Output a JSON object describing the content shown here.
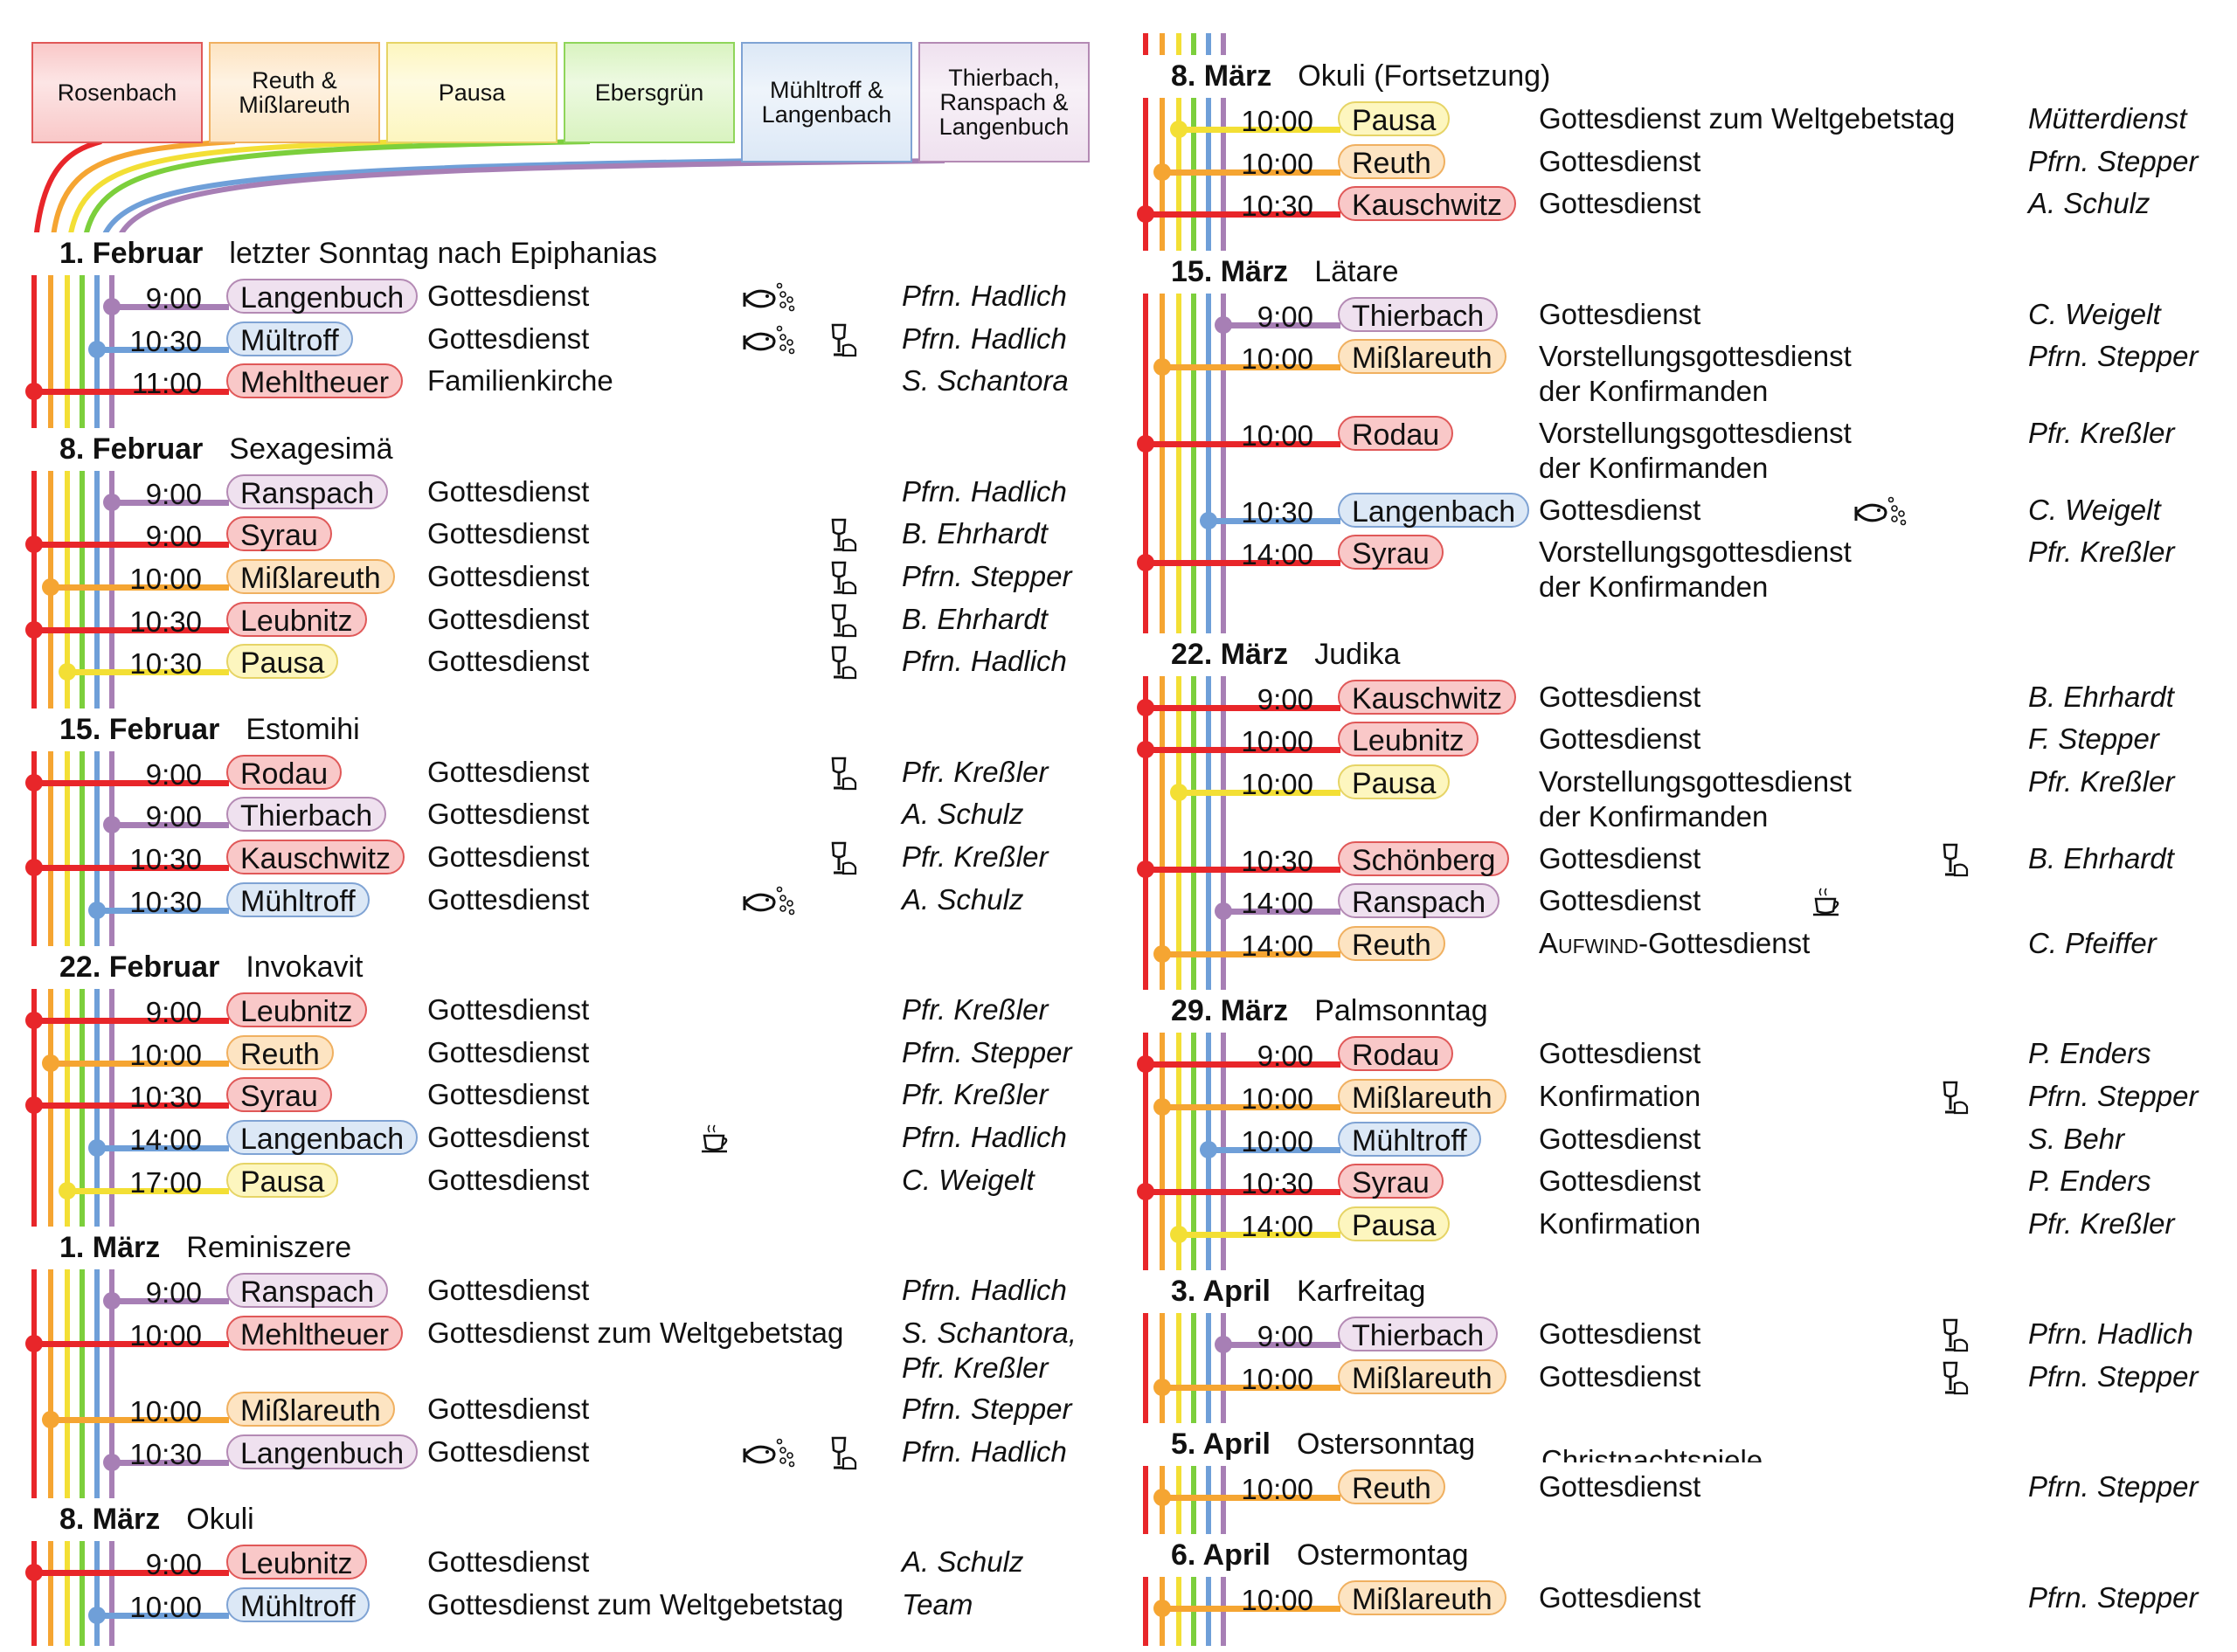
{
  "colors": {
    "rosenbach": {
      "rail": "#e8262a",
      "bg": "#f9c8c8",
      "border": "#e05858"
    },
    "reuth": {
      "rail": "#f5a532",
      "bg": "#fde4c2",
      "border": "#f0b060"
    },
    "pausa": {
      "rail": "#f3df35",
      "bg": "#fdf6bf",
      "border": "#e6d466"
    },
    "ebersgruen": {
      "rail": "#7ccf3c",
      "bg": "#d9f3c0",
      "border": "#8fd55a"
    },
    "muehltroff": {
      "rail": "#6f9fd8",
      "bg": "#dce8f6",
      "border": "#7fa3d4"
    },
    "thierbach": {
      "rail": "#a77fb5",
      "bg": "#efe1ef",
      "border": "#b48ab4"
    }
  },
  "tabs": [
    {
      "label": "Rosenbach",
      "parish": "rosenbach"
    },
    {
      "label": "Reuth &\nMißlareuth",
      "parish": "reuth"
    },
    {
      "label": "Pausa",
      "parish": "pausa"
    },
    {
      "label": "Ebersgrün",
      "parish": "ebersgruen"
    },
    {
      "label": "Mühltroff &\nLangenbach",
      "parish": "muehltroff"
    },
    {
      "label": "Thierbach,\nRanspach &\nLangenbuch",
      "parish": "thierbach"
    }
  ],
  "left": [
    {
      "date": "1. Februar",
      "name": "letzter Sonntag nach Epiphanias",
      "services": [
        {
          "time": "9:00",
          "place": "Langenbuch",
          "parish": "thierbach",
          "desc": "Gottesdienst",
          "icons": [
            "fish-icon"
          ],
          "pastor": "Pfrn. Hadlich"
        },
        {
          "time": "10:30",
          "place": "Mültroff",
          "parish": "muehltroff",
          "desc": "Gottesdienst",
          "icons": [
            "fish-icon",
            "chalice-icon"
          ],
          "pastor": "Pfrn. Hadlich"
        },
        {
          "time": "11:00",
          "place": "Mehltheuer",
          "parish": "rosenbach",
          "desc": "Familienkirche",
          "icons": [],
          "pastor": "S. Schantora"
        }
      ]
    },
    {
      "date": "8. Februar",
      "name": "Sexagesimä",
      "services": [
        {
          "time": "9:00",
          "place": "Ranspach",
          "parish": "thierbach",
          "desc": "Gottesdienst",
          "icons": [],
          "pastor": "Pfrn. Hadlich"
        },
        {
          "time": "9:00",
          "place": "Syrau",
          "parish": "rosenbach",
          "desc": "Gottesdienst",
          "icons": [
            "chalice-icon"
          ],
          "pastor": "B. Ehrhardt"
        },
        {
          "time": "10:00",
          "place": "Mißlareuth",
          "parish": "reuth",
          "desc": "Gottesdienst",
          "icons": [
            "chalice-icon"
          ],
          "pastor": "Pfrn. Stepper"
        },
        {
          "time": "10:30",
          "place": "Leubnitz",
          "parish": "rosenbach",
          "desc": "Gottesdienst",
          "icons": [
            "chalice-icon"
          ],
          "pastor": "B. Ehrhardt"
        },
        {
          "time": "10:30",
          "place": "Pausa",
          "parish": "pausa",
          "desc": "Gottesdienst",
          "icons": [
            "chalice-icon"
          ],
          "pastor": "Pfrn. Hadlich"
        }
      ]
    },
    {
      "date": "15. Februar",
      "name": "Estomihi",
      "services": [
        {
          "time": "9:00",
          "place": "Rodau",
          "parish": "rosenbach",
          "desc": "Gottesdienst",
          "icons": [
            "chalice-icon"
          ],
          "pastor": "Pfr. Kreßler"
        },
        {
          "time": "9:00",
          "place": "Thierbach",
          "parish": "thierbach",
          "desc": "Gottesdienst",
          "icons": [],
          "pastor": "A. Schulz"
        },
        {
          "time": "10:30",
          "place": "Kauschwitz",
          "parish": "rosenbach",
          "desc": "Gottesdienst",
          "icons": [
            "chalice-icon"
          ],
          "pastor": "Pfr. Kreßler"
        },
        {
          "time": "10:30",
          "place": "Mühltroff",
          "parish": "muehltroff",
          "desc": "Gottesdienst",
          "icons": [
            "fish-icon"
          ],
          "pastor": "A. Schulz"
        }
      ]
    },
    {
      "date": "22. Februar",
      "name": "Invokavit",
      "services": [
        {
          "time": "9:00",
          "place": "Leubnitz",
          "parish": "rosenbach",
          "desc": "Gottesdienst",
          "icons": [],
          "pastor": "Pfr. Kreßler"
        },
        {
          "time": "10:00",
          "place": "Reuth",
          "parish": "reuth",
          "desc": "Gottesdienst",
          "icons": [],
          "pastor": "Pfrn. Stepper"
        },
        {
          "time": "10:30",
          "place": "Syrau",
          "parish": "rosenbach",
          "desc": "Gottesdienst",
          "icons": [],
          "pastor": "Pfr. Kreßler"
        },
        {
          "time": "14:00",
          "place": "Langenbach",
          "parish": "muehltroff",
          "desc": "Gottesdienst",
          "icons": [
            "coffee-icon"
          ],
          "pastor": "Pfrn. Hadlich"
        },
        {
          "time": "17:00",
          "place": "Pausa",
          "parish": "pausa",
          "desc": "Gottesdienst",
          "icons": [],
          "pastor": "C. Weigelt"
        }
      ]
    },
    {
      "date": "1. März",
      "name": "Reminiszere",
      "services": [
        {
          "time": "9:00",
          "place": "Ranspach",
          "parish": "thierbach",
          "desc": "Gottesdienst",
          "icons": [],
          "pastor": "Pfrn. Hadlich"
        },
        {
          "time": "10:00",
          "place": "Mehltheuer",
          "parish": "rosenbach",
          "desc": "Gottesdienst zum Weltgebetstag",
          "icons": [],
          "pastor": "S. Schantora,\nPfr. Kreßler",
          "two": true
        },
        {
          "time": "10:00",
          "place": "Mißlareuth",
          "parish": "reuth",
          "desc": "Gottesdienst",
          "icons": [],
          "pastor": "Pfrn. Stepper"
        },
        {
          "time": "10:30",
          "place": "Langenbuch",
          "parish": "thierbach",
          "desc": "Gottesdienst",
          "icons": [
            "fish-icon",
            "chalice-icon"
          ],
          "pastor": "Pfrn. Hadlich"
        }
      ]
    },
    {
      "date": "8. März",
      "name": "Okuli",
      "services": [
        {
          "time": "9:00",
          "place": "Leubnitz",
          "parish": "rosenbach",
          "desc": "Gottesdienst",
          "icons": [],
          "pastor": "A. Schulz"
        },
        {
          "time": "10:00",
          "place": "Mühltroff",
          "parish": "muehltroff",
          "desc": "Gottesdienst zum Weltgebetstag",
          "icons": [],
          "pastor": "Team"
        }
      ]
    }
  ],
  "right": [
    {
      "date": "8. März",
      "name": "Okuli (Fortsetzung)",
      "services": [
        {
          "time": "10:00",
          "place": "Pausa",
          "parish": "pausa",
          "desc": "Gottesdienst zum Weltgebetstag",
          "icons": [],
          "pastor": "Mütterdienst"
        },
        {
          "time": "10:00",
          "place": "Reuth",
          "parish": "reuth",
          "desc": "Gottesdienst",
          "icons": [],
          "pastor": "Pfrn. Stepper"
        },
        {
          "time": "10:30",
          "place": "Kauschwitz",
          "parish": "rosenbach",
          "desc": "Gottesdienst",
          "icons": [],
          "pastor": "A. Schulz"
        }
      ]
    },
    {
      "date": "15. März",
      "name": "Lätare",
      "services": [
        {
          "time": "9:00",
          "place": "Thierbach",
          "parish": "thierbach",
          "desc": "Gottesdienst",
          "icons": [],
          "pastor": "C. Weigelt"
        },
        {
          "time": "10:00",
          "place": "Mißlareuth",
          "parish": "reuth",
          "desc": "Vorstellungsgottesdienst\nder Konfirmanden",
          "icons": [],
          "pastor": "Pfrn. Stepper",
          "two": true
        },
        {
          "time": "10:00",
          "place": "Rodau",
          "parish": "rosenbach",
          "desc": "Vorstellungsgottesdienst\nder Konfirmanden",
          "icons": [],
          "pastor": "Pfr. Kreßler",
          "two": true
        },
        {
          "time": "10:30",
          "place": "Langenbach",
          "parish": "muehltroff",
          "desc": "Gottesdienst",
          "icons": [
            "fish-icon"
          ],
          "pastor": "C. Weigelt"
        },
        {
          "time": "14:00",
          "place": "Syrau",
          "parish": "rosenbach",
          "desc": "Vorstellungsgottesdienst\nder Konfirmanden",
          "icons": [],
          "pastor": "Pfr. Kreßler",
          "two": true
        }
      ]
    },
    {
      "date": "22. März",
      "name": "Judika",
      "services": [
        {
          "time": "9:00",
          "place": "Kauschwitz",
          "parish": "rosenbach",
          "desc": "Gottesdienst",
          "icons": [],
          "pastor": "B. Ehrhardt"
        },
        {
          "time": "10:00",
          "place": "Leubnitz",
          "parish": "rosenbach",
          "desc": "Gottesdienst",
          "icons": [],
          "pastor": "F. Stepper"
        },
        {
          "time": "10:00",
          "place": "Pausa",
          "parish": "pausa",
          "desc": "Vorstellungsgottesdienst\nder Konfirmanden",
          "icons": [],
          "pastor": "Pfr. Kreßler",
          "two": true
        },
        {
          "time": "10:30",
          "place": "Schönberg",
          "parish": "rosenbach",
          "desc": "Gottesdienst",
          "icons": [
            "chalice-icon"
          ],
          "pastor": "B. Ehrhardt"
        },
        {
          "time": "14:00",
          "place": "Ranspach",
          "parish": "thierbach",
          "desc": "Gottesdienst",
          "icons": [
            "coffee-icon"
          ],
          "pastor": ""
        },
        {
          "time": "14:00",
          "place": "Reuth",
          "parish": "reuth",
          "desc_sc": "Aufwind",
          "desc": "-Gottesdienst",
          "icons": [],
          "pastor": "C. Pfeiffer"
        }
      ]
    },
    {
      "date": "29. März",
      "name": "Palmsonntag",
      "services": [
        {
          "time": "9:00",
          "place": "Rodau",
          "parish": "rosenbach",
          "desc": "Gottesdienst",
          "icons": [],
          "pastor": "P. Enders"
        },
        {
          "time": "10:00",
          "place": "Mißlareuth",
          "parish": "reuth",
          "desc": "Konfirmation",
          "icons": [
            "chalice-icon"
          ],
          "pastor": "Pfrn. Stepper"
        },
        {
          "time": "10:00",
          "place": "Mühltroff",
          "parish": "muehltroff",
          "desc": "Gottesdienst",
          "icons": [],
          "pastor": "S. Behr"
        },
        {
          "time": "10:30",
          "place": "Syrau",
          "parish": "rosenbach",
          "desc": "Gottesdienst",
          "icons": [],
          "pastor": "P. Enders"
        },
        {
          "time": "14:00",
          "place": "Pausa",
          "parish": "pausa",
          "desc": "Konfirmation",
          "icons": [],
          "pastor": "Pfr. Kreßler"
        }
      ]
    },
    {
      "date": "3. April",
      "name": "Karfreitag",
      "services": [
        {
          "time": "9:00",
          "place": "Thierbach",
          "parish": "thierbach",
          "desc": "Gottesdienst",
          "icons": [
            "chalice-icon"
          ],
          "pastor": "Pfrn. Hadlich"
        },
        {
          "time": "10:00",
          "place": "Mißlareuth",
          "parish": "reuth",
          "desc": "Gottesdienst",
          "icons": [
            "chalice-icon"
          ],
          "pastor": "Pfrn. Stepper"
        }
      ]
    },
    {
      "date": "5. April",
      "name": "Ostersonntag",
      "clipped_text": "Christnachtspiele",
      "services": [
        {
          "time": "10:00",
          "place": "Reuth",
          "parish": "reuth",
          "desc": "Gottesdienst",
          "icons": [],
          "pastor": "Pfrn. Stepper"
        }
      ]
    },
    {
      "date": "6. April",
      "name": "Ostermontag",
      "services": [
        {
          "time": "10:00",
          "place": "Mißlareuth",
          "parish": "reuth",
          "desc": "Gottesdienst",
          "icons": [],
          "pastor": "Pfrn. Stepper"
        }
      ]
    }
  ]
}
